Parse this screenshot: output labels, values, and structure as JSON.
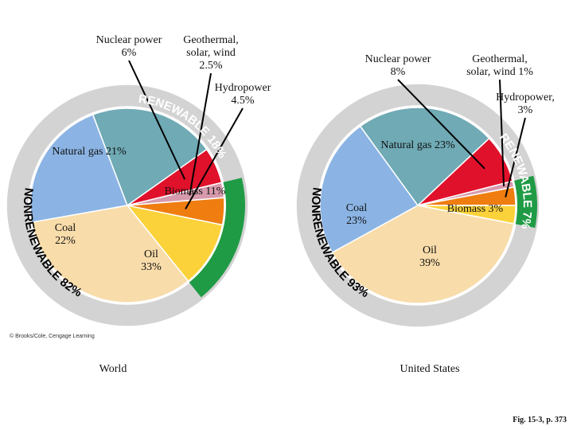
{
  "chart_data": [
    {
      "type": "pie",
      "title": "World",
      "slices": [
        {
          "label": "Coal 22%",
          "name": "Coal",
          "value": 22,
          "color": "#8bb4e4",
          "group": "nonrenewable"
        },
        {
          "label": "Natural gas 21%",
          "name": "Natural gas",
          "value": 21,
          "color": "#6faab5",
          "group": "nonrenewable"
        },
        {
          "label": "Nuclear power 6%",
          "name": "Nuclear power",
          "value": 6,
          "color": "#e0112b",
          "group": "nonrenewable"
        },
        {
          "label": "Geothermal, solar, wind 2.5%",
          "name": "Geothermal, solar, wind",
          "value": 2.5,
          "color": "#d79aad",
          "group": "renewable"
        },
        {
          "label": "Hydropower 4.5%",
          "name": "Hydropower",
          "value": 4.5,
          "color": "#ef7d10",
          "group": "renewable"
        },
        {
          "label": "Biomass 11%",
          "name": "Biomass",
          "value": 11,
          "color": "#fbd23a",
          "group": "renewable"
        },
        {
          "label": "Oil 33%",
          "name": "Oil",
          "value": 33,
          "color": "#f8dcaa",
          "group": "nonrenewable"
        }
      ],
      "bands": {
        "renewable": "RENEWABLE 18%",
        "nonrenewable": "NONRENEWABLE 82%"
      }
    },
    {
      "type": "pie",
      "title": "United States",
      "slices": [
        {
          "label": "Coal 23%",
          "name": "Coal",
          "value": 23,
          "color": "#8bb4e4",
          "group": "nonrenewable"
        },
        {
          "label": "Natural gas 23%",
          "name": "Natural gas",
          "value": 23,
          "color": "#6faab5",
          "group": "nonrenewable"
        },
        {
          "label": "Nuclear power 8%",
          "name": "Nuclear power",
          "value": 8,
          "color": "#e0112b",
          "group": "nonrenewable"
        },
        {
          "label": "Geothermal, solar, wind 1%",
          "name": "Geothermal, solar, wind",
          "value": 1,
          "color": "#d79aad",
          "group": "renewable"
        },
        {
          "label": "Hydropower, 3%",
          "name": "Hydropower",
          "value": 3,
          "color": "#ef7d10",
          "group": "renewable"
        },
        {
          "label": "Biomass 3%",
          "name": "Biomass",
          "value": 3,
          "color": "#fbd23a",
          "group": "renewable"
        },
        {
          "label": "Oil 39%",
          "name": "Oil",
          "value": 39,
          "color": "#f8dcaa",
          "group": "nonrenewable"
        }
      ],
      "bands": {
        "renewable": "RENEWABLE 7%",
        "nonrenewable": "NONRENEWABLE 93%"
      }
    }
  ],
  "copyright": "© Brooks/Cole, Cengage Learning",
  "figure_caption": "Fig. 15-3, p. 373",
  "colors": {
    "renewable_band": "#1f9b45",
    "ring": "#d3d3d3",
    "separator": "#ffffff"
  }
}
